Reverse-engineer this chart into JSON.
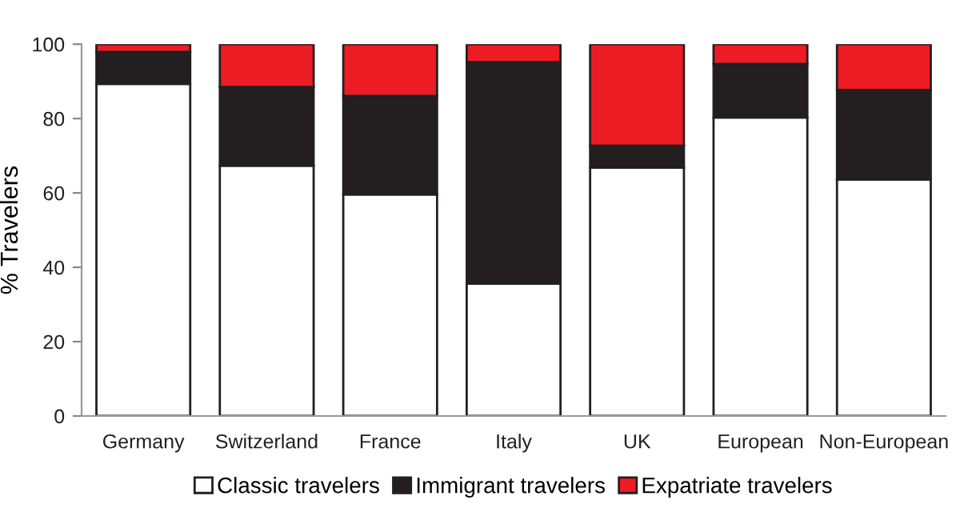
{
  "chart_data": {
    "type": "bar",
    "stacked": true,
    "ylabel": "% Travelers",
    "categories": [
      "Germany",
      "Switzerland",
      "France",
      "Italy",
      "UK",
      "European",
      "Non-European"
    ],
    "series": [
      {
        "name": "Classic travelers",
        "color": "#ffffff",
        "values": [
          89.3,
          67.3,
          59.6,
          35.6,
          66.8,
          80.3,
          63.6
        ]
      },
      {
        "name": "Immigrant travelers",
        "color": "#231f20",
        "values": [
          8.6,
          21.2,
          26.5,
          59.6,
          5.9,
          14.4,
          24.1
        ]
      },
      {
        "name": "Expatriate travelers",
        "color": "#ed1c24",
        "values": [
          2.1,
          11.5,
          13.9,
          4.8,
          27.3,
          5.3,
          12.3
        ]
      }
    ],
    "ylim": [
      0,
      100
    ],
    "yticks": [
      0,
      20,
      40,
      60,
      80,
      100
    ],
    "grid": false,
    "legend": "bottom"
  }
}
